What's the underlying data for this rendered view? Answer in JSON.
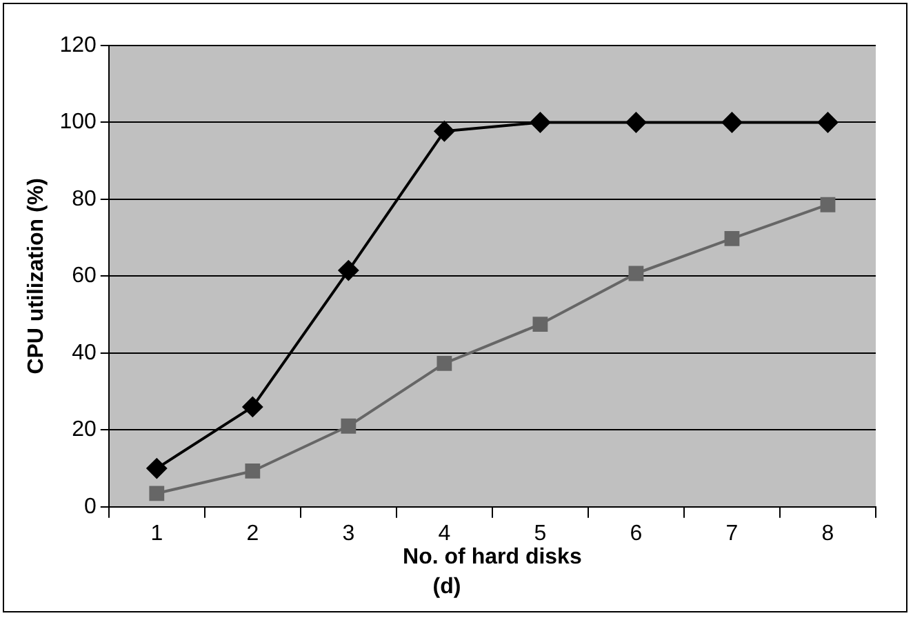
{
  "chart_data": {
    "type": "line",
    "ylabel": "CPU utilization (%)",
    "xlabel": "No. of hard disks",
    "annotations": [
      "(d)"
    ],
    "categories": [
      "1",
      "2",
      "3",
      "4",
      "5",
      "6",
      "7",
      "8"
    ],
    "series": [
      {
        "color": "#000000",
        "marker": "diamond",
        "values": [
          10,
          26,
          61.5,
          97.7,
          100,
          100,
          100,
          100
        ]
      },
      {
        "color": "#666666",
        "marker": "square",
        "values": [
          3.5,
          9.3,
          21,
          37.3,
          47.5,
          60.7,
          69.8,
          78.6
        ]
      }
    ],
    "ylim": [
      0,
      120
    ],
    "yticks": [
      0,
      20,
      40,
      60,
      80,
      100,
      120
    ],
    "grid": "y",
    "legend": false,
    "line_style": "solid"
  }
}
